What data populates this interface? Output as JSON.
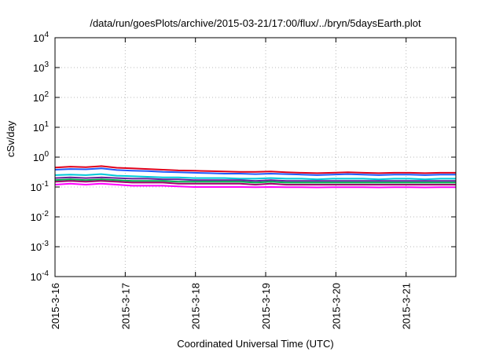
{
  "chart_data": {
    "type": "line",
    "title": "/data/run/goesPlots/archive/2015-03-21/17:00/flux/../bryn/5daysEarth.plot",
    "xlabel": "Coordinated Universal Time (UTC)",
    "ylabel": "cSv/day",
    "yscale": "log",
    "ylim": [
      0.0001,
      10000
    ],
    "y_ticks": [
      {
        "base": "10",
        "exp": "-4"
      },
      {
        "base": "10",
        "exp": "-3"
      },
      {
        "base": "10",
        "exp": "-2"
      },
      {
        "base": "10",
        "exp": "-1"
      },
      {
        "base": "10",
        "exp": "0"
      },
      {
        "base": "10",
        "exp": "1"
      },
      {
        "base": "10",
        "exp": "2"
      },
      {
        "base": "10",
        "exp": "3"
      },
      {
        "base": "10",
        "exp": "4"
      }
    ],
    "xlim": [
      "2015-03-16",
      "2015-03-21 17:00"
    ],
    "x_ticks": [
      "2015-3-16",
      "2015-3-17",
      "2015-3-18",
      "2015-3-19",
      "2015-3-20",
      "2015-3-21"
    ],
    "grid": true,
    "colors": [
      "#e0001a",
      "#1f5cff",
      "#00c8d8",
      "#6a1f9a",
      "#00b050",
      "#a0006a",
      "#ff00ff"
    ],
    "series": [
      {
        "values": [
          0.45,
          0.48,
          0.46,
          0.5,
          0.44,
          0.42,
          0.4,
          0.38,
          0.36,
          0.35,
          0.34,
          0.33,
          0.32,
          0.32,
          0.33,
          0.31,
          0.3,
          0.29,
          0.3,
          0.31,
          0.3,
          0.29,
          0.3,
          0.3,
          0.29,
          0.3,
          0.3
        ]
      },
      {
        "values": [
          0.38,
          0.4,
          0.39,
          0.42,
          0.37,
          0.35,
          0.34,
          0.32,
          0.31,
          0.3,
          0.29,
          0.28,
          0.28,
          0.27,
          0.28,
          0.27,
          0.26,
          0.25,
          0.26,
          0.27,
          0.26,
          0.25,
          0.26,
          0.26,
          0.25,
          0.26,
          0.26
        ]
      },
      {
        "values": [
          0.25,
          0.26,
          0.25,
          0.27,
          0.24,
          0.23,
          0.22,
          0.21,
          0.21,
          0.2,
          0.2,
          0.2,
          0.19,
          0.19,
          0.2,
          0.19,
          0.19,
          0.18,
          0.19,
          0.19,
          0.19,
          0.18,
          0.19,
          0.19,
          0.18,
          0.19,
          0.19
        ]
      },
      {
        "values": [
          0.2,
          0.21,
          0.2,
          0.21,
          0.2,
          0.19,
          0.19,
          0.18,
          0.18,
          0.17,
          0.17,
          0.17,
          0.17,
          0.16,
          0.17,
          0.16,
          0.16,
          0.16,
          0.16,
          0.16,
          0.16,
          0.16,
          0.16,
          0.16,
          0.16,
          0.16,
          0.16
        ]
      },
      {
        "values": [
          0.17,
          0.18,
          0.17,
          0.18,
          0.17,
          0.16,
          0.16,
          0.16,
          0.15,
          0.15,
          0.15,
          0.15,
          0.15,
          0.14,
          0.15,
          0.14,
          0.14,
          0.14,
          0.14,
          0.14,
          0.14,
          0.14,
          0.14,
          0.14,
          0.14,
          0.14,
          0.14
        ]
      },
      {
        "values": [
          0.15,
          0.16,
          0.15,
          0.16,
          0.15,
          0.14,
          0.14,
          0.14,
          0.13,
          0.13,
          0.13,
          0.13,
          0.13,
          0.12,
          0.13,
          0.12,
          0.12,
          0.12,
          0.12,
          0.12,
          0.12,
          0.12,
          0.12,
          0.12,
          0.12,
          0.12,
          0.12
        ]
      },
      {
        "values": [
          0.12,
          0.13,
          0.12,
          0.13,
          0.12,
          0.11,
          0.11,
          0.11,
          0.105,
          0.1,
          0.1,
          0.1,
          0.1,
          0.098,
          0.1,
          0.098,
          0.098,
          0.097,
          0.098,
          0.098,
          0.098,
          0.097,
          0.098,
          0.098,
          0.097,
          0.098,
          0.098
        ]
      }
    ]
  }
}
